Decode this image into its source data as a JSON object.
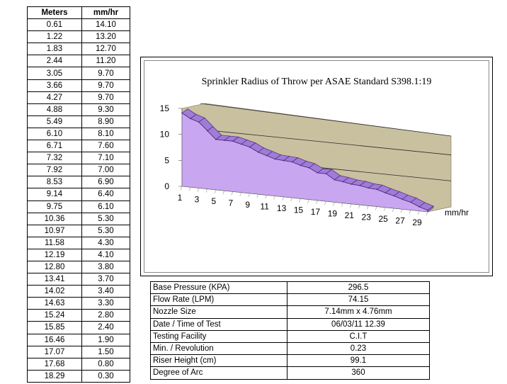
{
  "table": {
    "headers": [
      "Meters",
      "mm/hr"
    ],
    "rows": [
      [
        "0.61",
        "14.10"
      ],
      [
        "1.22",
        "13.20"
      ],
      [
        "1.83",
        "12.70"
      ],
      [
        "2.44",
        "11.20"
      ],
      [
        "3.05",
        "9.70"
      ],
      [
        "3.66",
        "9.70"
      ],
      [
        "4.27",
        "9.70"
      ],
      [
        "4.88",
        "9.30"
      ],
      [
        "5.49",
        "8.90"
      ],
      [
        "6.10",
        "8.10"
      ],
      [
        "6.71",
        "7.60"
      ],
      [
        "7.32",
        "7.10"
      ],
      [
        "7.92",
        "7.00"
      ],
      [
        "8.53",
        "6.90"
      ],
      [
        "9.14",
        "6.40"
      ],
      [
        "9.75",
        "6.10"
      ],
      [
        "10.36",
        "5.30"
      ],
      [
        "10.97",
        "5.30"
      ],
      [
        "11.58",
        "4.30"
      ],
      [
        "12.19",
        "4.10"
      ],
      [
        "12.80",
        "3.80"
      ],
      [
        "13.41",
        "3.70"
      ],
      [
        "14.02",
        "3.40"
      ],
      [
        "14.63",
        "3.30"
      ],
      [
        "15.24",
        "2.80"
      ],
      [
        "15.85",
        "2.40"
      ],
      [
        "16.46",
        "1.90"
      ],
      [
        "17.07",
        "1.50"
      ],
      [
        "17.68",
        "0.80"
      ],
      [
        "18.29",
        "0.30"
      ]
    ]
  },
  "chart_data": {
    "type": "area",
    "title": "Sprinkler Radius of Throw per ASAE Standard S398.1:19",
    "categories": [
      1,
      2,
      3,
      4,
      5,
      6,
      7,
      8,
      9,
      10,
      11,
      12,
      13,
      14,
      15,
      16,
      17,
      18,
      19,
      20,
      21,
      22,
      23,
      24,
      25,
      26,
      27,
      28,
      29,
      30
    ],
    "x_tick_labels": [
      "1",
      "3",
      "5",
      "7",
      "9",
      "11",
      "13",
      "15",
      "17",
      "19",
      "21",
      "23",
      "25",
      "27",
      "29"
    ],
    "series": [
      {
        "name": "mm/hr",
        "values": [
          14.1,
          13.2,
          12.7,
          11.2,
          9.7,
          9.7,
          9.7,
          9.3,
          8.9,
          8.1,
          7.6,
          7.1,
          7.0,
          6.9,
          6.4,
          6.1,
          5.3,
          5.3,
          4.3,
          4.1,
          3.8,
          3.7,
          3.4,
          3.3,
          2.8,
          2.4,
          1.9,
          1.5,
          0.8,
          0.3
        ]
      }
    ],
    "y_tick_labels": [
      "0",
      "5",
      "10",
      "15"
    ],
    "ylim": [
      0,
      15
    ],
    "grid": true,
    "legend": "right",
    "style": "3d-area",
    "colors": {
      "area": "#c9a6f0",
      "ridge": "#a07cd8",
      "edge": "#4b2a7a",
      "wall": "#c9c0a0",
      "text": "#000000"
    }
  },
  "info": {
    "rows": [
      {
        "label": "Base Pressure (KPA)",
        "value": "296.5"
      },
      {
        "label": "Flow Rate (LPM)",
        "value": "74.15"
      },
      {
        "label": "Nozzle Size",
        "value": "7.14mm x 4.76mm"
      },
      {
        "label": "Date / Time of Test",
        "value": "06/03/11 12.39"
      },
      {
        "label": "Testing Facility",
        "value": "C.I.T"
      },
      {
        "label": "Min. / Revolution",
        "value": "0.23"
      },
      {
        "label": "Riser Height (cm)",
        "value": "99.1"
      },
      {
        "label": "Degree of Arc",
        "value": "360"
      }
    ]
  }
}
